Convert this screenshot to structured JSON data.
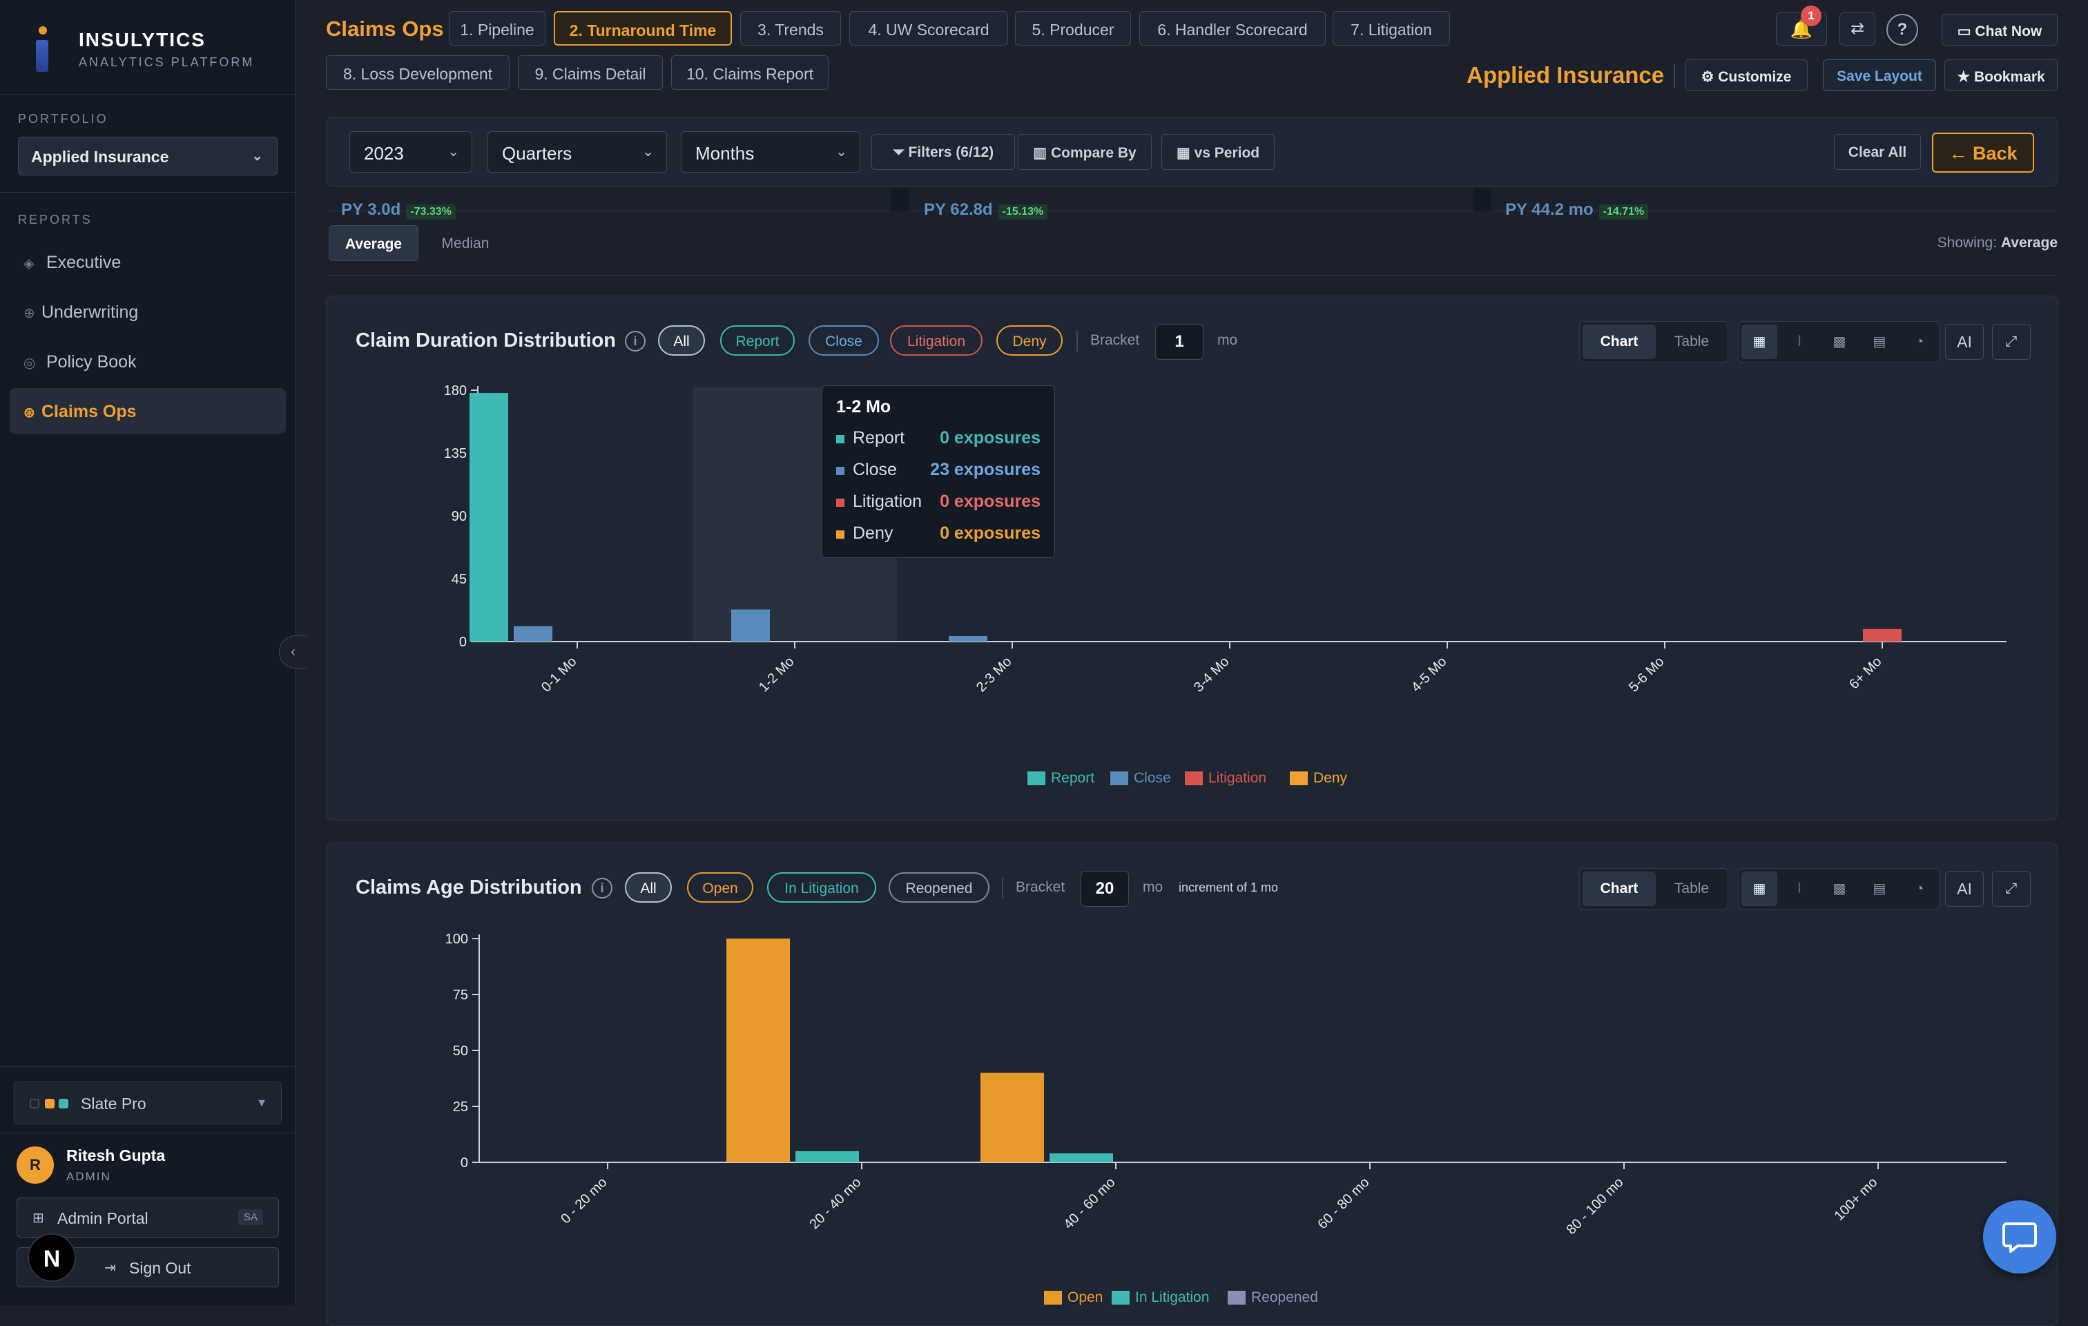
{
  "sidebar": {
    "brand": "INSULYTICS",
    "brand_sub": "ANALYTICS PLATFORM",
    "portfolio_label": "PORTFOLIO",
    "portfolio_value": "Applied Insurance",
    "reports_label": "REPORTS",
    "items": [
      {
        "label": "Executive",
        "icon": "diamond-icon"
      },
      {
        "label": "Underwriting",
        "icon": "target-icon"
      },
      {
        "label": "Policy Book",
        "icon": "circle-icon"
      },
      {
        "label": "Claims Ops",
        "icon": "gear-icon",
        "active": true
      }
    ],
    "theme": "Slate Pro",
    "theme_colors": [
      "#3b4658",
      "#f0a030",
      "#3fb9b3"
    ],
    "user_initial": "R",
    "user_name": "Ritesh Gupta",
    "user_role": "ADMIN",
    "admin_portal": "Admin Portal",
    "admin_badge": "SA",
    "sign_out": "Sign Out",
    "n_badge": "N"
  },
  "header": {
    "title": "Claims Ops",
    "tabs": [
      "1. Pipeline",
      "2. Turnaround Time",
      "3. Trends",
      "4. UW Scorecard",
      "5. Producer",
      "6. Handler Scorecard",
      "7. Litigation",
      "8. Loss Development",
      "9. Claims Detail",
      "10. Claims Report"
    ],
    "active_tab": "2. Turnaround Time",
    "notification_count": "1",
    "chat_now": "Chat Now",
    "client": "Applied Insurance",
    "customize": "Customize",
    "save_layout": "Save Layout",
    "bookmark": "Bookmark"
  },
  "filters": {
    "year": "2023",
    "period": "Quarters",
    "granularity": "Months",
    "filters_btn": "Filters (6/12)",
    "compare_by": "Compare By",
    "vs_period": "vs Period",
    "clear_all": "Clear All",
    "back": "← Back"
  },
  "kpis": [
    {
      "value": "PY 3.0d",
      "change": "-73.33%"
    },
    {
      "value": "PY 62.8d",
      "change": "-15.13%"
    },
    {
      "value": "PY 44.2 mo",
      "change": "-14.71%"
    }
  ],
  "stat_toggle": {
    "average": "Average",
    "median": "Median",
    "showing_label": "Showing:",
    "showing_value": "Average"
  },
  "colors": {
    "report": "#3fb9b3",
    "close": "#5a8bbd",
    "litigation": "#d9534f",
    "deny": "#f0a030",
    "open": "#e89a2b",
    "in_litigation": "#3fb9b3",
    "reopened": "#8a8fb8"
  },
  "duration_card": {
    "title": "Claim Duration Distribution",
    "pills": [
      "All",
      "Report",
      "Close",
      "Litigation",
      "Deny"
    ],
    "bracket_label": "Bracket",
    "bracket_value": "1",
    "bracket_unit": "mo",
    "chart_btn": "Chart",
    "table_btn": "Table",
    "ai": "AI",
    "tooltip": {
      "title": "1-2 Mo",
      "rows": [
        {
          "name": "Report",
          "value": "0 exposures"
        },
        {
          "name": "Close",
          "value": "23 exposures"
        },
        {
          "name": "Litigation",
          "value": "0 exposures"
        },
        {
          "name": "Deny",
          "value": "0 exposures"
        }
      ]
    }
  },
  "age_card": {
    "title": "Claims Age Distribution",
    "pills": [
      "All",
      "Open",
      "In Litigation",
      "Reopened"
    ],
    "bracket_label": "Bracket",
    "bracket_value": "20",
    "bracket_unit": "mo",
    "increment": "increment of 1 mo",
    "chart_btn": "Chart",
    "table_btn": "Table",
    "ai": "AI"
  },
  "chart_data": [
    {
      "type": "bar",
      "categories": [
        "0-1 Mo",
        "1-2 Mo",
        "2-3 Mo",
        "3-4 Mo",
        "4-5 Mo",
        "5-6 Mo",
        "6+ Mo"
      ],
      "series": [
        {
          "name": "Report",
          "values": [
            178,
            0,
            0,
            0,
            0,
            0,
            0
          ]
        },
        {
          "name": "Close",
          "values": [
            11,
            23,
            4,
            0,
            0,
            0,
            0
          ]
        },
        {
          "name": "Litigation",
          "values": [
            0,
            0,
            0,
            0,
            0,
            0,
            9
          ]
        },
        {
          "name": "Deny",
          "values": [
            0,
            0,
            0,
            0,
            0,
            0,
            0
          ]
        }
      ],
      "yticks": [
        0,
        45,
        90,
        135,
        180
      ],
      "ylim": [
        0,
        180
      ],
      "legend": "bottom"
    },
    {
      "type": "bar",
      "categories": [
        "0 - 20 mo",
        "20 - 40 mo",
        "40 - 60 mo",
        "60 - 80 mo",
        "80 - 100 mo",
        "100+ mo"
      ],
      "series": [
        {
          "name": "Open",
          "values": [
            0,
            100,
            40,
            0,
            0,
            0
          ]
        },
        {
          "name": "In Litigation",
          "values": [
            0,
            5,
            4,
            0,
            0,
            0
          ]
        },
        {
          "name": "Reopened",
          "values": [
            0,
            0,
            0,
            0,
            0,
            0
          ]
        }
      ],
      "yticks": [
        0,
        25,
        50,
        75,
        100
      ],
      "ylim": [
        0,
        100
      ],
      "legend": "bottom"
    }
  ]
}
